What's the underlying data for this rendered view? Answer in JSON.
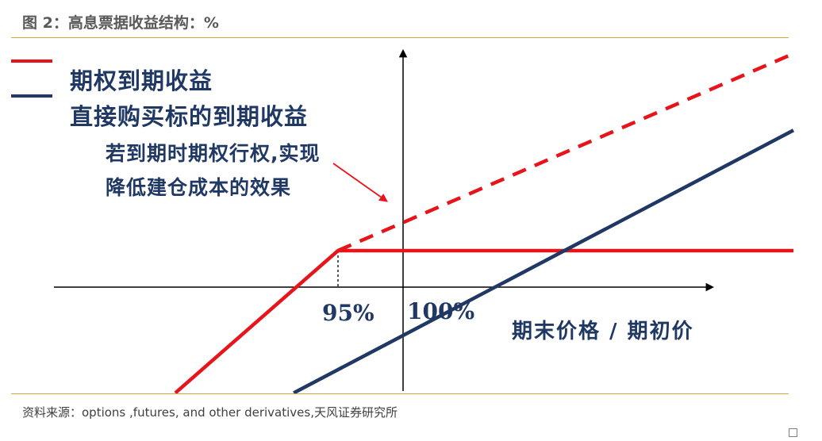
{
  "figure": {
    "title": "图 2：高息票据收益结构：%",
    "source": "资料来源：options ,futures, and other derivatives,天风证券研究所"
  },
  "chart_data": {
    "type": "line",
    "title": "",
    "xlabel": "期末价格  /  期初价",
    "ylabel": "",
    "grid": false,
    "legend_position": "top-left",
    "tick_labels": [
      "95%",
      "100%"
    ],
    "breakpoints": {
      "x": [
        95,
        100
      ]
    },
    "series": [
      {
        "name": "期权到期收益",
        "color": "#e8141b",
        "style": "solid",
        "points": [
          [
            82.5,
            -2.9
          ],
          [
            95,
            1
          ],
          [
            130,
            1
          ]
        ]
      },
      {
        "name": "",
        "color": "#e8141b",
        "style": "dashed",
        "points": [
          [
            95,
            1
          ],
          [
            130,
            6.4
          ]
        ]
      },
      {
        "name": "直接购买标的到期收益",
        "color": "#1f3864",
        "style": "solid",
        "points": [
          [
            91.6,
            -2.9
          ],
          [
            130,
            4.3
          ]
        ]
      }
    ],
    "annotation": {
      "lines": [
        "若到期时期权行权,实现",
        "降低建仓成本的效果"
      ],
      "arrow_color": "#e8141b"
    }
  },
  "colors": {
    "option_line": "#e8141b",
    "underlying_line": "#1f3864",
    "axis": "#000000",
    "rule": "#e39a3b",
    "text_dark": "#1f3864"
  }
}
